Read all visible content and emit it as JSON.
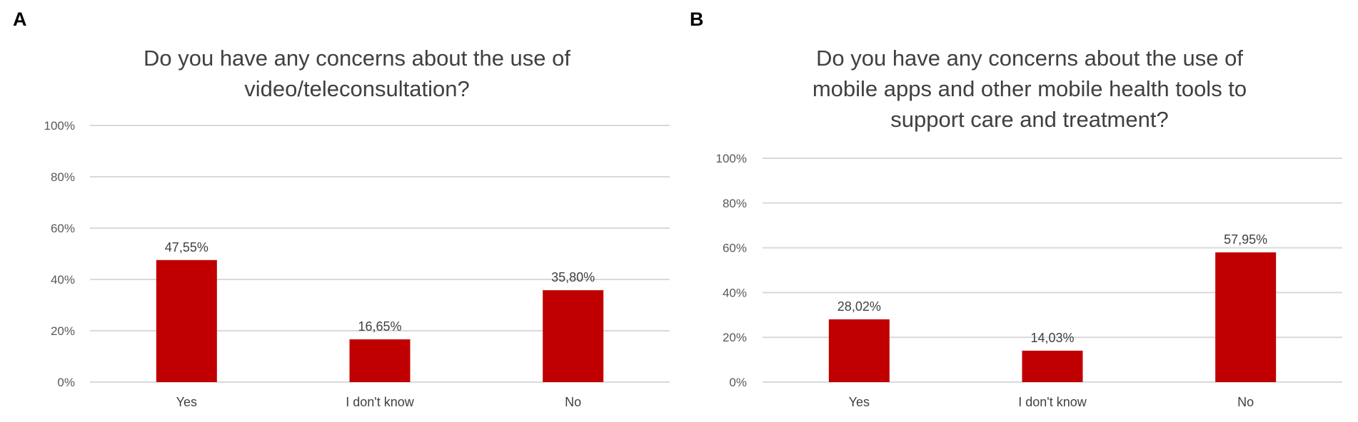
{
  "colors": {
    "bar": "#c00000",
    "grid": "#d9d9d9",
    "text": "#404040",
    "tick": "#595959"
  },
  "chart_data": [
    {
      "type": "bar",
      "panel": "A",
      "title_lines": [
        "Do you have any concerns about the use of",
        "video/teleconsultation?"
      ],
      "xlabel": "",
      "ylabel": "",
      "categories": [
        "Yes",
        "I don't know",
        "No"
      ],
      "values": [
        47.55,
        16.65,
        35.8
      ],
      "data_labels": [
        "47,55%",
        "16,65%",
        "35,80%"
      ],
      "ylim": [
        0,
        100
      ],
      "yticks": [
        "0%",
        "20%",
        "40%",
        "60%",
        "80%",
        "100%"
      ],
      "grid": true,
      "legend": "none"
    },
    {
      "type": "bar",
      "panel": "B",
      "title_lines": [
        "Do you have any concerns about the use of",
        "mobile apps and other mobile health tools to",
        "support care and treatment?"
      ],
      "xlabel": "",
      "ylabel": "",
      "categories": [
        "Yes",
        "I don't know",
        "No"
      ],
      "values": [
        28.02,
        14.03,
        57.95
      ],
      "data_labels": [
        "28,02%",
        "14,03%",
        "57,95%"
      ],
      "ylim": [
        0,
        100
      ],
      "yticks": [
        "0%",
        "20%",
        "40%",
        "60%",
        "80%",
        "100%"
      ],
      "grid": true,
      "legend": "none"
    }
  ]
}
